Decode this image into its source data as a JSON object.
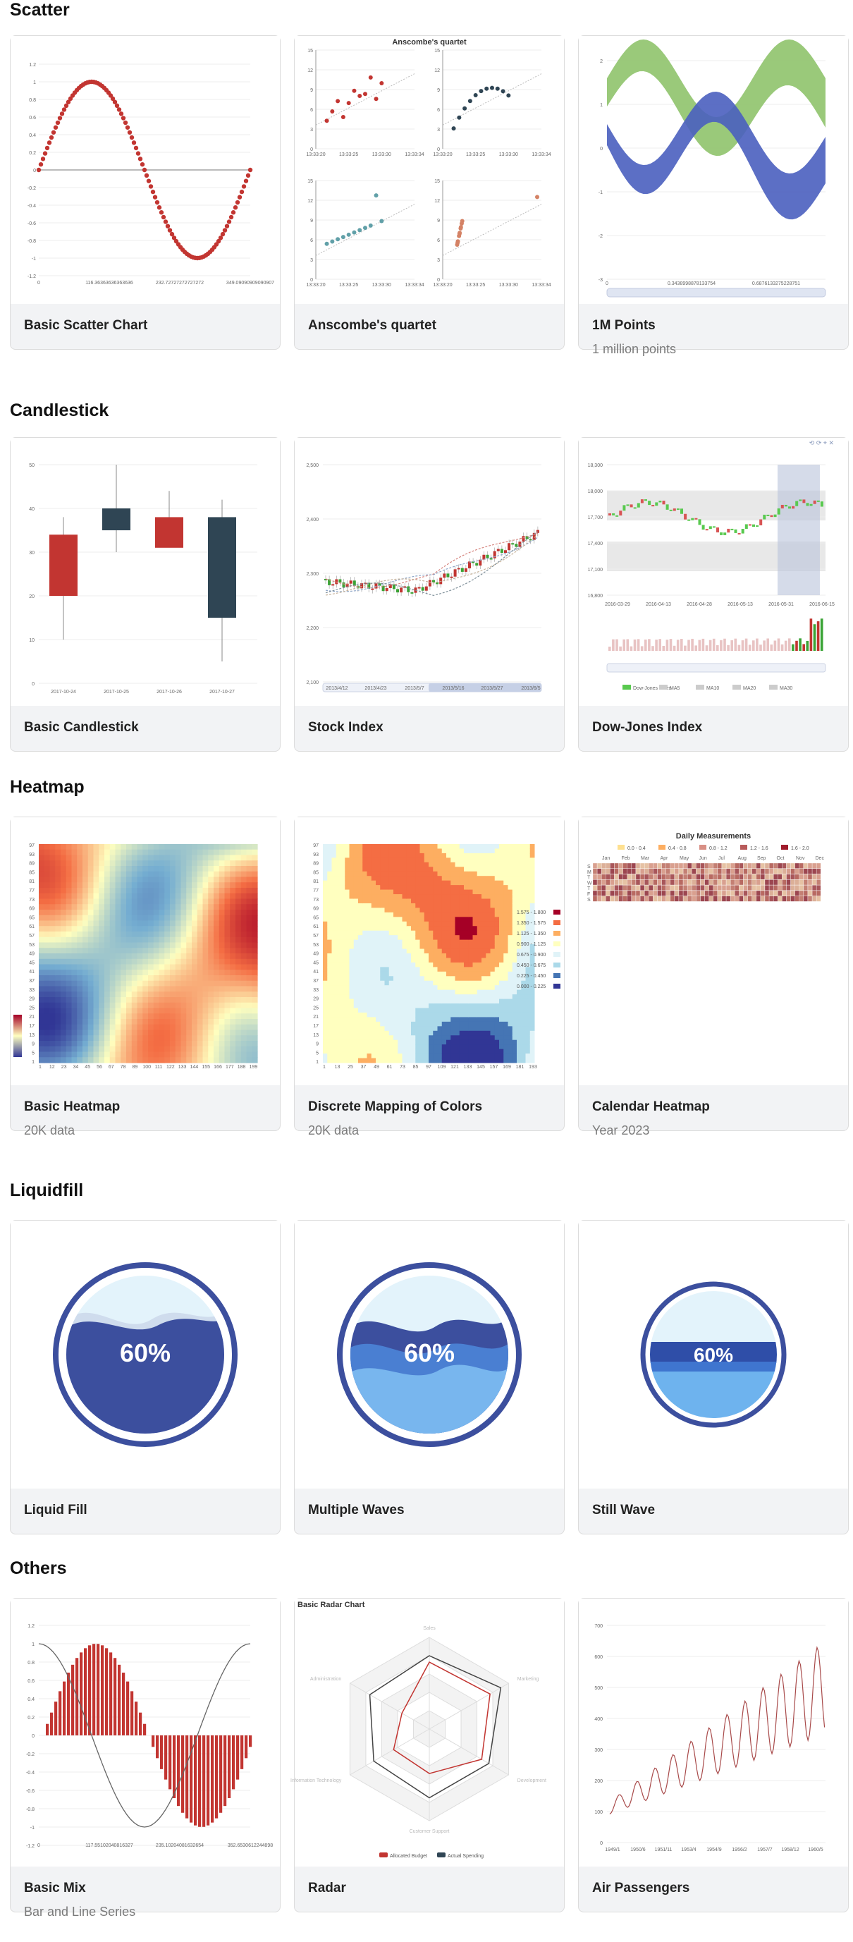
{
  "sections": [
    {
      "title": "Scatter",
      "cards": [
        {
          "name": "Basic Scatter Chart",
          "sub": ""
        },
        {
          "name": "Anscombe's quartet",
          "sub": ""
        },
        {
          "name": "1M Points",
          "sub": "1 million points"
        }
      ]
    },
    {
      "title": "Candlestick",
      "cards": [
        {
          "name": "Basic Candlestick",
          "sub": ""
        },
        {
          "name": "Stock Index",
          "sub": ""
        },
        {
          "name": "Dow-Jones Index",
          "sub": ""
        }
      ]
    },
    {
      "title": "Heatmap",
      "cards": [
        {
          "name": "Basic Heatmap",
          "sub": "20K data"
        },
        {
          "name": "Discrete Mapping of Colors",
          "sub": "20K data"
        },
        {
          "name": "Calendar Heatmap",
          "sub": "Year 2023"
        }
      ]
    },
    {
      "title": "Liquidfill",
      "cards": [
        {
          "name": "Liquid Fill",
          "sub": ""
        },
        {
          "name": "Multiple Waves",
          "sub": ""
        },
        {
          "name": "Still Wave",
          "sub": ""
        }
      ]
    },
    {
      "title": "Others",
      "cards": [
        {
          "name": "Basic Mix",
          "sub": "Bar and Line Series"
        },
        {
          "name": "Radar",
          "sub": ""
        },
        {
          "name": "Air Passengers",
          "sub": ""
        }
      ]
    }
  ],
  "thumb_text": {
    "scatter_x": [
      "0",
      "116.36363636363636",
      "232.72727272727272",
      "349.09090909090907"
    ],
    "scatter_y": [
      "1.2",
      "1",
      "0.8",
      "0.6",
      "0.4",
      "0.2",
      "0",
      "-0.2",
      "-0.4",
      "-0.6",
      "-0.8",
      "-1",
      "-1.2"
    ],
    "anscombe_title": "Anscombe's quartet",
    "anscombe_x": [
      "13:33:20",
      "13:33:25",
      "13:33:30",
      "13:33:34"
    ],
    "anscombe_y": [
      "15",
      "12",
      "9",
      "6",
      "3",
      "0"
    ],
    "points_y": [
      "2",
      "1",
      "0",
      "-1",
      "-2",
      "-3"
    ],
    "points_x": [
      "0",
      "0.3438998878133754",
      "0.6876133275228751"
    ],
    "candle_x": [
      "2017-10-24",
      "2017-10-25",
      "2017-10-26",
      "2017-10-27"
    ],
    "candle_y": [
      "50",
      "40",
      "30",
      "20",
      "10",
      "0"
    ],
    "stock_y": [
      "2,500",
      "2,400",
      "2,300",
      "2,200",
      "2,100"
    ],
    "stock_x": [
      "2013/4/12",
      "2013/4/23",
      "2013/5/7",
      "2013/5/16",
      "2013/5/27",
      "2013/6/5"
    ],
    "dow_y": [
      "18,300",
      "18,000",
      "17,700",
      "17,400",
      "17,100",
      "16,800"
    ],
    "dow_x": [
      "2016-03-29",
      "2016-04-13",
      "2016-04-28",
      "2016-05-13",
      "2016-05-31",
      "2016-06-15"
    ],
    "dow_legend": [
      "Dow-Jones Index",
      "MA5",
      "MA10",
      "MA20",
      "MA30"
    ],
    "heat_y": [
      "97",
      "93",
      "89",
      "85",
      "81",
      "77",
      "73",
      "69",
      "65",
      "61",
      "57",
      "53",
      "49",
      "45",
      "41",
      "37",
      "33",
      "29",
      "25",
      "21",
      "17",
      "13",
      "9",
      "5",
      "1"
    ],
    "heat_x": [
      "1",
      "12",
      "23",
      "34",
      "45",
      "56",
      "67",
      "78",
      "89",
      "100",
      "111",
      "122",
      "133",
      "144",
      "155",
      "166",
      "177",
      "188",
      "199"
    ],
    "heat2_x": [
      "1",
      "13",
      "25",
      "37",
      "49",
      "61",
      "73",
      "85",
      "97",
      "109",
      "121",
      "133",
      "145",
      "157",
      "169",
      "181",
      "193"
    ],
    "heat2_legend": [
      "1.575 - 1.800",
      "1.350 - 1.575",
      "1.125 - 1.350",
      "0.900 - 1.125",
      "0.675 - 0.900",
      "0.450 - 0.675",
      "0.225 - 0.450",
      "0.000 - 0.225"
    ],
    "cal_title": "Daily Measurements",
    "cal_legend": [
      "0.0 - 0.4",
      "0.4 - 0.8",
      "0.8 - 1.2",
      "1.2 - 1.6",
      "1.6 - 2.0"
    ],
    "cal_months": [
      "Jan",
      "Feb",
      "Mar",
      "Apr",
      "May",
      "Jun",
      "Jul",
      "Aug",
      "Sep",
      "Oct",
      "Nov",
      "Dec"
    ],
    "cal_days": [
      "S",
      "M",
      "T",
      "W",
      "T",
      "F",
      "S"
    ],
    "liquid_label": "60%",
    "mix_x": [
      "0",
      "117.55102040816327",
      "235.10204081632654",
      "352.6530612244898"
    ],
    "radar_title": "Basic Radar Chart",
    "radar_axes": [
      "Sales",
      "Marketing",
      "Development",
      "Customer Support",
      "Information Technology",
      "Administration"
    ],
    "radar_legend": [
      "Allocated Budget",
      "Actual Spending"
    ],
    "air_y": [
      "700",
      "600",
      "500",
      "400",
      "300",
      "200",
      "100",
      "0"
    ],
    "air_x": [
      "1949/1",
      "1950/6",
      "1951/11",
      "1953/4",
      "1954/9",
      "1956/2",
      "1957/7",
      "1958/12",
      "1960/5"
    ]
  }
}
